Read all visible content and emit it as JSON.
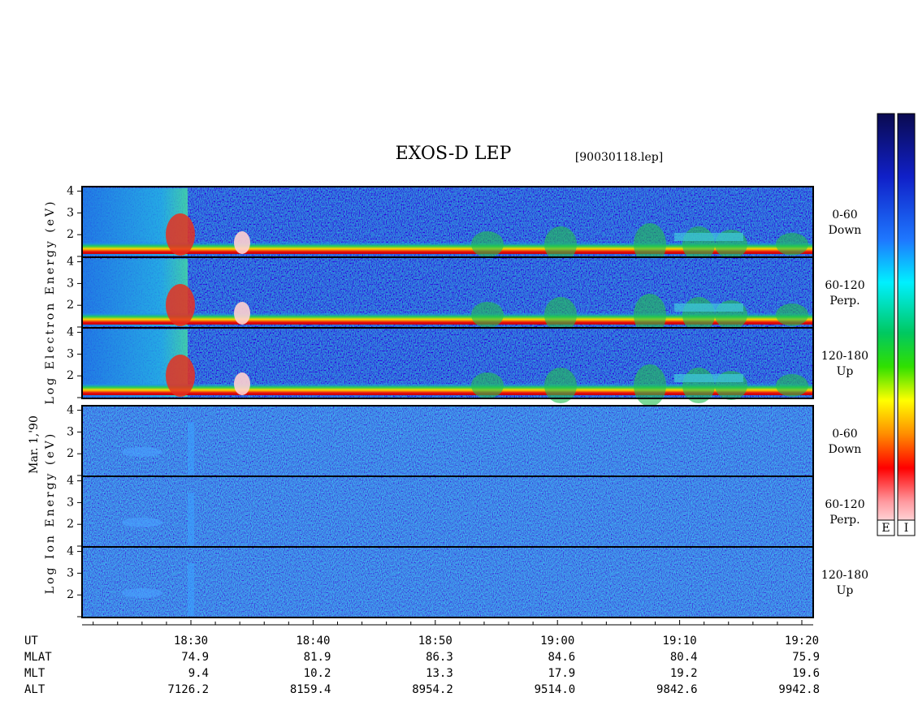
{
  "title": "EXOS-D LEP",
  "file": "[90030118.lep]",
  "date": "Mar. 1,'90",
  "electron_label": "Log Electron Energy (eV)",
  "ion_label": "Log Ion Energy (eV)",
  "y_ticks": [
    "2",
    "3",
    "4"
  ],
  "panels": [
    {
      "range": "0-60",
      "direction": "Down"
    },
    {
      "range": "60-120",
      "direction": "Perp."
    },
    {
      "range": "120-180",
      "direction": "Up"
    }
  ],
  "time_axis": {
    "rows": [
      {
        "label": "UT",
        "values": [
          "18:30",
          "18:40",
          "18:50",
          "19:00",
          "19:10",
          "19:20"
        ]
      },
      {
        "label": "MLAT",
        "values": [
          "74.9",
          "81.9",
          "86.3",
          "84.6",
          "80.4",
          "75.9"
        ]
      },
      {
        "label": "MLT",
        "values": [
          "9.4",
          "10.2",
          "13.3",
          "17.9",
          "19.2",
          "19.6"
        ]
      },
      {
        "label": "ALT",
        "values": [
          "7126.2",
          "8159.4",
          "8954.2",
          "9514.0",
          "9842.6",
          "9942.8"
        ]
      }
    ]
  },
  "colorbar": [
    "E",
    "I"
  ]
}
